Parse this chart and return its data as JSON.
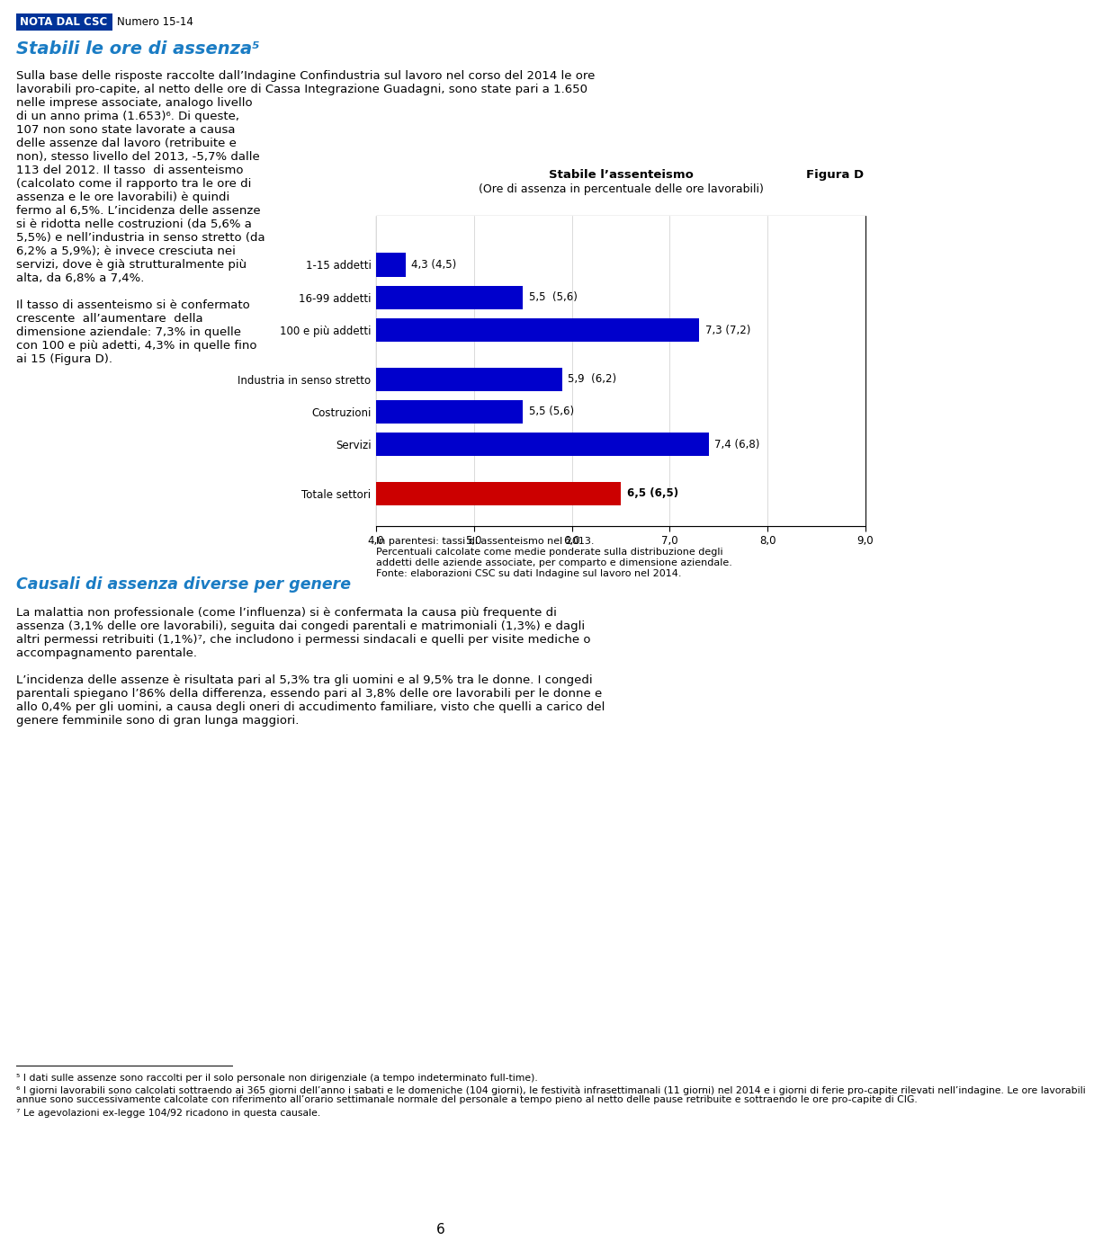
{
  "header_text": "NOTA DAL CSC",
  "header_number": "Numero 15-14",
  "header_bg": "#003399",
  "title_section1": "Stabili le ore di assenza⁵",
  "title_section2": "Causali di assenza diverse per genere",
  "figura_label": "Figura D",
  "chart_title": "Stabile l’assenteismo",
  "chart_subtitle": "(Ore di assenza in percentuale delle ore lavorabili)",
  "categories": [
    "1-15 addetti",
    "16-99 addetti",
    "100 e più addetti",
    "Industria in senso stretto",
    "Costruzioni",
    "Servizi",
    "Totale settori"
  ],
  "values": [
    4.3,
    5.5,
    7.3,
    5.9,
    5.5,
    7.4,
    6.5
  ],
  "bar_labels": [
    "4,3 (4,5)",
    "5,5  (5,6)",
    "7,3 (7,2)",
    "5,9  (6,2)",
    "5,5 (5,6)",
    "7,4 (6,8)",
    "6,5 (6,5)"
  ],
  "bar_colors": [
    "#0000cc",
    "#0000cc",
    "#0000cc",
    "#0000cc",
    "#0000cc",
    "#0000cc",
    "#cc0000"
  ],
  "bar_positions": [
    8.5,
    7.5,
    6.5,
    5.0,
    4.0,
    3.0,
    1.5
  ],
  "xmin": 4.0,
  "xmax": 9.0,
  "ylim_bottom": 0.5,
  "ylim_top": 10.0,
  "xtick_labels": [
    "4,0",
    "5,0",
    "6,0",
    "7,0",
    "8,0",
    "9,0"
  ],
  "xtick_vals": [
    4.0,
    5.0,
    6.0,
    7.0,
    8.0,
    9.0
  ],
  "bar_height": 0.72,
  "chart_note1": "In parentesi: tassi di assenteismo nel 2013.",
  "chart_note2": "Percentuali calcolate come medie ponderate sulla distribuzione degli",
  "chart_note3": "addetti delle aziende associate, per comparto e dimensione aziendale.",
  "chart_note4": "Fonte: elaborazioni CSC su dati Indagine sul lavoro nel 2014.",
  "full_para_lines": [
    "Sulla base delle risposte raccolte dall’Indagine Confindustria sul lavoro nel corso del 2014 le ore",
    "lavorabili pro-capite, al netto delle ore di Cassa Integrazione Guadagni, sono state pari a 1.650"
  ],
  "left_col_lines": [
    "nelle imprese associate, analogo livello",
    "di un anno prima (1.653)⁶. Di queste,",
    "107 non sono state lavorate a causa",
    "delle assenze dal lavoro (retribuite e",
    "non), stesso livello del 2013, -5,7% dalle",
    "113 del 2012. Il tasso  di assenteismo",
    "(calcolato come il rapporto tra le ore di",
    "assenza e le ore lavorabili) è quindi",
    "fermo al 6,5%. L’incidenza delle assenze",
    "si è ridotta nelle costruzioni (da 5,6% a",
    "5,5%) e nell’industria in senso stretto (da",
    "6,2% a 5,9%); è invece cresciuta nei",
    "servizi, dove è già strutturalmente più",
    "alta, da 6,8% a 7,4%."
  ],
  "left_col2_lines": [
    "Il tasso di assenteismo si è confermato",
    "crescente  all’aumentare  della",
    "dimensione aziendale: 7,3% in quelle",
    "con 100 e più adetti, 4,3% in quelle fino",
    "ai 15 (Figura D)."
  ],
  "para3_lines": [
    "La malattia non professionale (come l’influenza) si è confermata la causa più frequente di",
    "assenza (3,1% delle ore lavorabili), seguita dai congedi parentali e matrimoniali (1,3%) e dagli",
    "altri permessi retribuiti (1,1%)⁷, che includono i permessi sindacali e quelli per visite mediche o",
    "accompagnamento parentale."
  ],
  "para4_lines": [
    "L’incidenza delle assenze è risultata pari al 5,3% tra gli uomini e al 9,5% tra le donne. I congedi",
    "parentali spiegano l’86% della differenza, essendo pari al 3,8% delle ore lavorabili per le donne e",
    "allo 0,4% per gli uomini, a causa degli oneri di accudimento familiare, visto che quelli a carico del",
    "genere femminile sono di gran lunga maggiori."
  ],
  "fn1": "⁵ I dati sulle assenze sono raccolti per il solo personale non dirigenziale (a tempo indeterminato full-time).",
  "fn2_lines": [
    "⁶ I giorni lavorabili sono calcolati sottraendo ai 365 giorni dell’anno i sabati e le domeniche (104 giorni), le festività infrasettimanali (11 giorni) nel 2014 e i giorni di ferie pro-capite rilevati nell’indagine. Le ore lavorabili",
    "annue sono successivamente calcolate con riferimento all’orario settimanale normale del personale a tempo pieno al netto delle pause retribuite e sottraendo le ore pro-capite di CIG."
  ],
  "fn3": "⁷ Le agevolazioni ex-legge 104/92 ricadono in questa causale.",
  "page_number": "6",
  "body_fontsize": 9.5,
  "note_fontsize": 8.0,
  "fn_fontsize": 7.8,
  "header_fontsize": 8.5,
  "title_fontsize": 14.0,
  "section2_fontsize": 12.5,
  "chart_label_fontsize": 8.5,
  "chart_title_fontsize": 9.5,
  "title_color": "#1a7cc4",
  "text_color": "#000000",
  "header_text_color": "#ffffff",
  "box_color": "#000000"
}
